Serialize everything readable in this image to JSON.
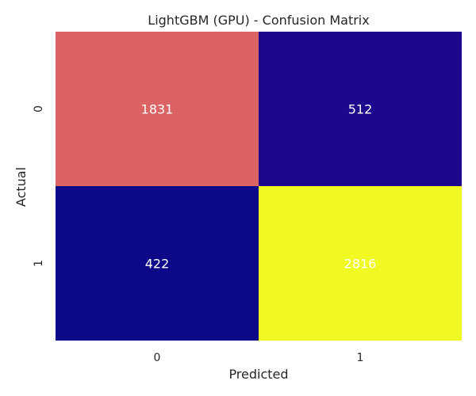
{
  "chart_data": {
    "type": "heatmap",
    "title": "LightGBM (GPU) - Confusion Matrix",
    "xlabel": "Predicted",
    "ylabel": "Actual",
    "x_categories": [
      "0",
      "1"
    ],
    "y_categories": [
      "0",
      "1"
    ],
    "values": [
      [
        1831,
        512
      ],
      [
        422,
        2816
      ]
    ],
    "colormap": "plasma",
    "colorbar": false,
    "annotation_color": "#ffffff",
    "grid": false
  }
}
